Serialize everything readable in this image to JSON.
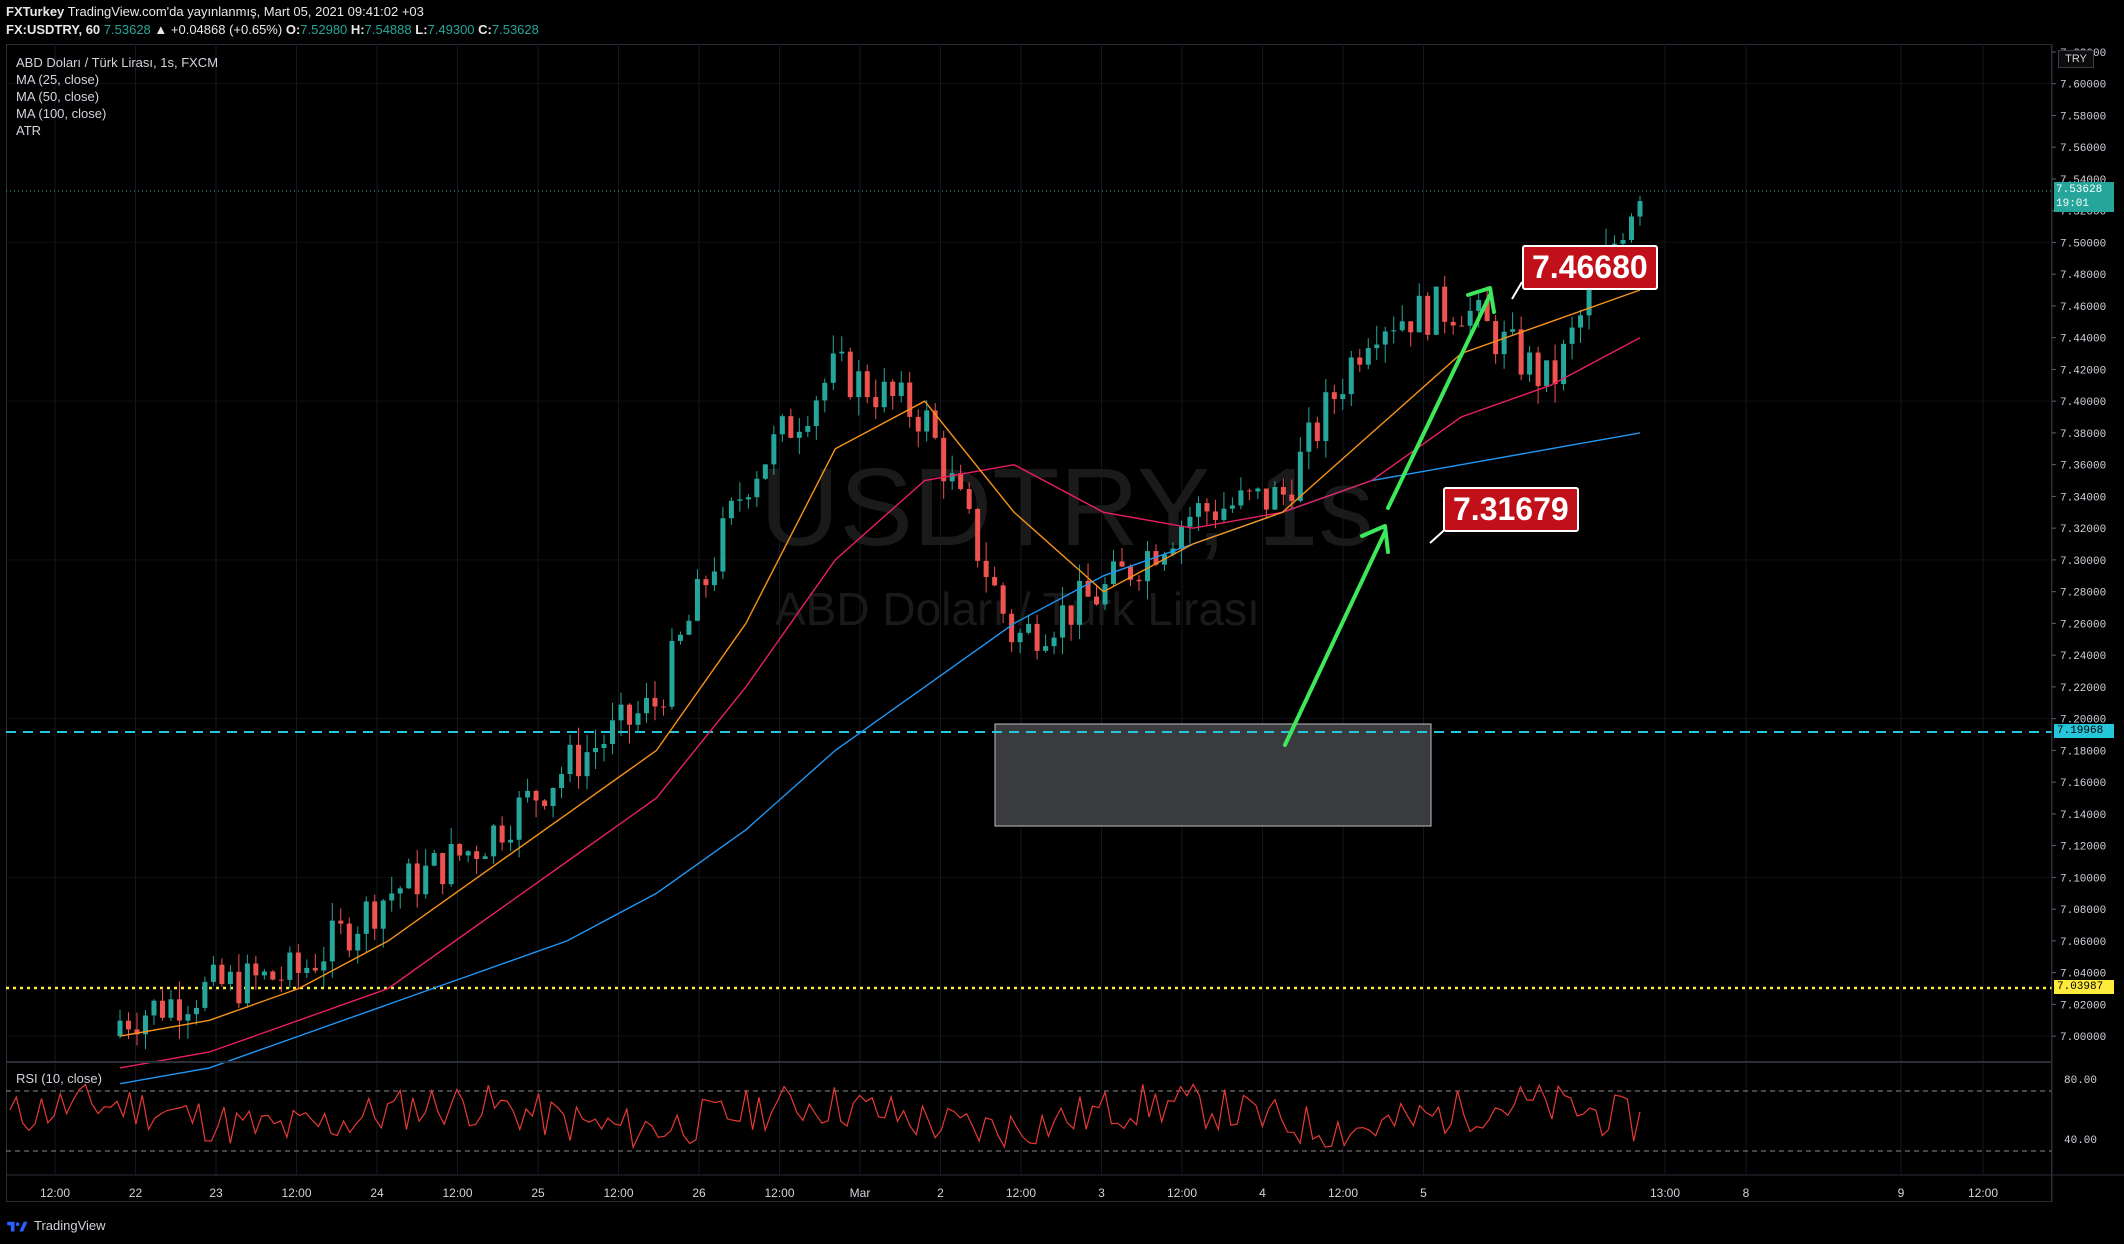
{
  "header": {
    "publisher": "FXTurkey",
    "published_text": "TradingView.com'da yayınlanmış, Mart 05, 2021 09:41:02 +03",
    "symbol": "FX:USDTRY, 60",
    "last": "7.53628",
    "change": "▲ +0.04868 (+0.65%)",
    "o_label": "O:",
    "o_value": "7.52980",
    "h_label": "H:",
    "h_value": "7.54888",
    "l_label": "L:",
    "l_value": "7.49300",
    "c_label": "C:",
    "c_value": "7.53628"
  },
  "legend": {
    "title": "ABD Doları / Türk Lirası, 1s, FXCM",
    "ma25": "MA (25, close)",
    "ma50": "MA (50, close)",
    "ma100": "MA (100, close)",
    "atr": "ATR"
  },
  "watermark": {
    "symbol": "USDTRY, 1s",
    "name": "ABD Doları / Türk Lirası"
  },
  "price_axis": {
    "unit": "TRY",
    "ticks": [
      "7.62000",
      "7.60000",
      "7.58000",
      "7.56000",
      "7.54000",
      "7.52000",
      "7.50000",
      "7.48000",
      "7.46000",
      "7.44000",
      "7.42000",
      "7.40000",
      "7.38000",
      "7.36000",
      "7.34000",
      "7.32000",
      "7.30000",
      "7.28000",
      "7.26000",
      "7.24000",
      "7.22000",
      "7.20000",
      "7.18000",
      "7.16000",
      "7.14000",
      "7.12000",
      "7.10000",
      "7.08000",
      "7.06000",
      "7.04000",
      "7.02000",
      "7.00000"
    ],
    "current_price": "7.53628",
    "current_countdown": "19:01",
    "cyan_line_price": "7.19968",
    "yellow_line_price": "7.03987"
  },
  "callouts": {
    "upper": "7.46680",
    "lower": "7.31679"
  },
  "rsi": {
    "label": "RSI (10, close)",
    "ticks": [
      "80.00",
      "40.00"
    ]
  },
  "time_axis": {
    "ticks": [
      "12:00",
      "22",
      "23",
      "12:00",
      "24",
      "12:00",
      "25",
      "12:00",
      "26",
      "12:00",
      "Mar",
      "2",
      "12:00",
      "3",
      "12:00",
      "4",
      "12:00",
      "5",
      "13:00",
      "8",
      "9",
      "12:00"
    ]
  },
  "footer": {
    "brand": "TradingView"
  },
  "colors": {
    "up": "#26a69a",
    "down": "#ef5350",
    "ma25": "#f7931a",
    "ma50": "#e91e63",
    "ma100": "#2196f3",
    "cyan": "#26c6da",
    "yellow": "#ffeb3b",
    "callout_bg": "#c1101a"
  },
  "chart_data": {
    "type": "line",
    "title": "ABD Doları / Türk Lirası, 1s, FXCM",
    "ylim": [
      7.0,
      7.62
    ],
    "x": [
      "22 12:00",
      "23",
      "23 12:00",
      "24",
      "24 12:00",
      "25",
      "25 12:00",
      "26",
      "26 12:00",
      "Mar",
      "2",
      "2 12:00",
      "3",
      "3 12:00",
      "4",
      "4 12:00",
      "5",
      "5 13:00"
    ],
    "series": [
      {
        "name": "close",
        "values": [
          7.01,
          7.03,
          7.04,
          7.09,
          7.12,
          7.17,
          7.21,
          7.35,
          7.42,
          7.39,
          7.25,
          7.28,
          7.33,
          7.34,
          7.45,
          7.46,
          7.41,
          7.536
        ]
      },
      {
        "name": "MA (25, close)",
        "values": [
          7.0,
          7.01,
          7.03,
          7.06,
          7.1,
          7.14,
          7.18,
          7.26,
          7.37,
          7.4,
          7.33,
          7.28,
          7.31,
          7.33,
          7.38,
          7.43,
          7.45,
          7.47
        ]
      },
      {
        "name": "MA (50, close)",
        "values": [
          6.98,
          6.99,
          7.01,
          7.03,
          7.07,
          7.11,
          7.15,
          7.22,
          7.3,
          7.35,
          7.36,
          7.33,
          7.32,
          7.33,
          7.35,
          7.39,
          7.41,
          7.44
        ]
      },
      {
        "name": "MA (100, close)",
        "values": [
          6.97,
          6.98,
          7.0,
          7.02,
          7.04,
          7.06,
          7.09,
          7.13,
          7.18,
          7.22,
          7.26,
          7.29,
          7.31,
          7.33,
          7.35,
          7.36,
          7.37,
          7.38
        ]
      }
    ],
    "hlines": [
      7.19968,
      7.03987
    ],
    "annotations": [
      "7.46680",
      "7.31679"
    ]
  }
}
